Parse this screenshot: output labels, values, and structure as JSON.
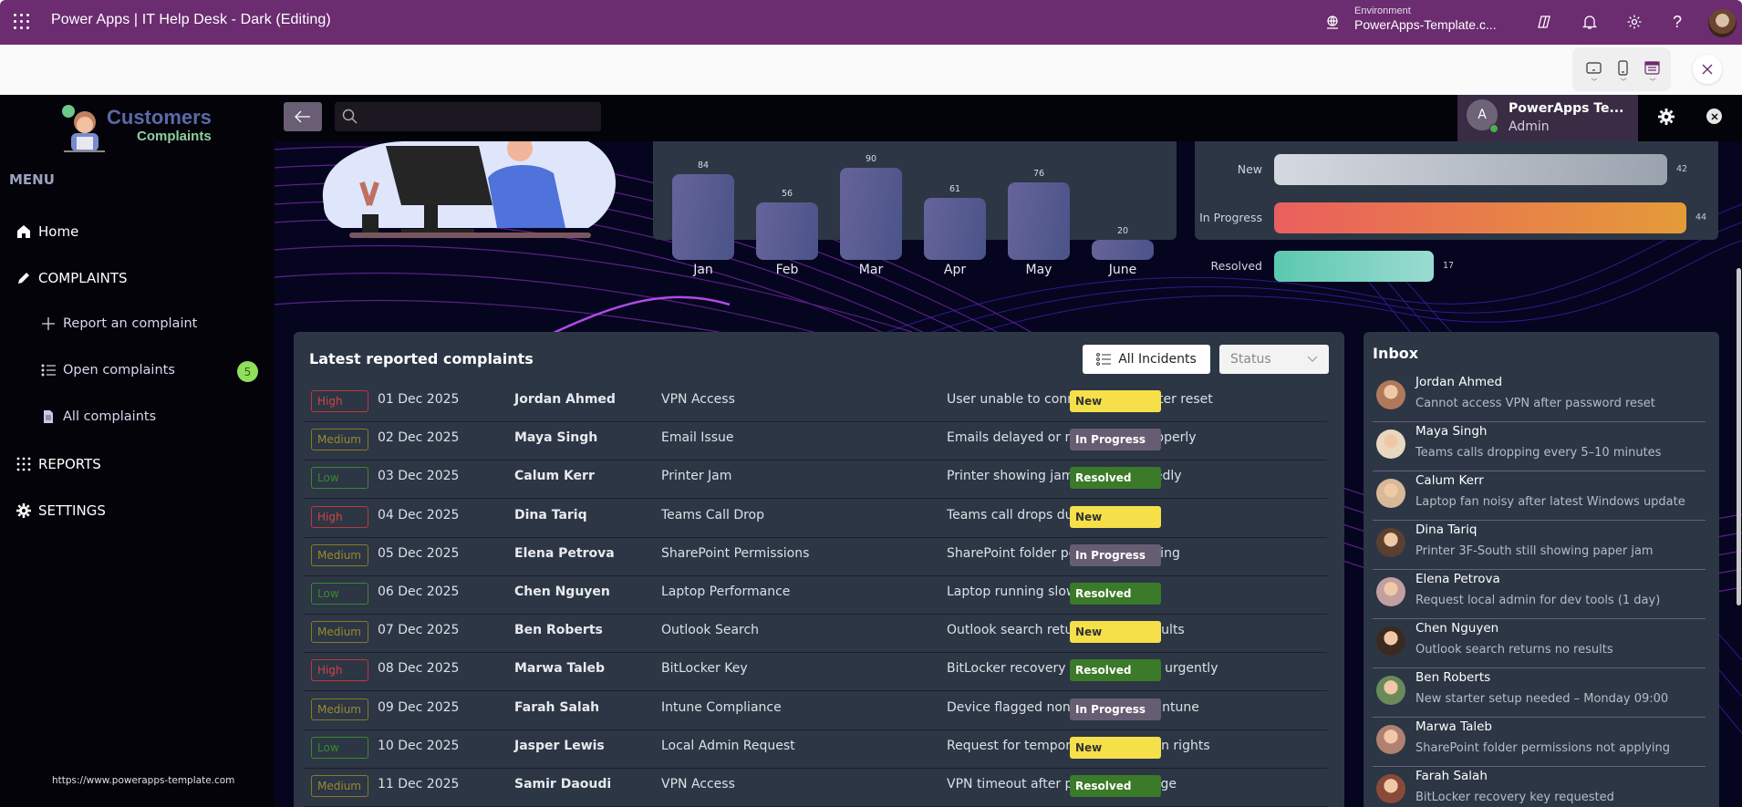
{
  "topbar": {
    "app_title": "Power Apps  |  IT Help Desk - Dark (Editing)",
    "environment_label": "Environment",
    "environment_value": "PowerApps-Template.c...",
    "icons": [
      "waffle-icon",
      "environment-icon",
      "copilot-icon",
      "bell-icon",
      "gear-icon",
      "help-icon",
      "user-avatar"
    ]
  },
  "device_toolbar": {
    "icons": [
      "tablet-icon",
      "phone-icon",
      "web-layout-icon"
    ]
  },
  "sidebar": {
    "logo_title": "Customers",
    "logo_subtitle": "Complaints",
    "menu_label": "MENU",
    "items": [
      {
        "label": "Home",
        "icon": "home-icon"
      },
      {
        "label": "COMPLAINTS",
        "icon": "pencil-icon"
      },
      {
        "label": "Report an complaint",
        "icon": "plus-icon"
      },
      {
        "label": "Open complaints",
        "icon": "list-icon",
        "badge": "5"
      },
      {
        "label": "All complaints",
        "icon": "document-icon"
      },
      {
        "label": "REPORTS",
        "icon": "grid-icon"
      },
      {
        "label": "SETTINGS",
        "icon": "gear-icon"
      }
    ],
    "footer_url": "https://www.powerapps-template.com"
  },
  "header": {
    "search_placeholder": "",
    "profile_initial": "A",
    "profile_name": "PowerApps Te...",
    "profile_role": "Admin"
  },
  "chart_data": [
    {
      "type": "bar",
      "title": "",
      "categories": [
        "Jan",
        "Feb",
        "Mar",
        "Apr",
        "May",
        "June"
      ],
      "values": [
        84,
        56,
        90,
        61,
        76,
        20
      ],
      "xlabel": "",
      "ylabel": "",
      "grid": false,
      "bar_color": "#5a5d94"
    },
    {
      "type": "bar",
      "orientation": "horizontal",
      "title": "",
      "categories": [
        "New",
        "In Progress",
        "Resolved"
      ],
      "values": [
        42,
        44,
        17
      ],
      "colors": [
        "#b8bfc8",
        "#e8794e",
        "#6dd3bf"
      ],
      "grid": false
    }
  ],
  "complaints": {
    "title": "Latest reported complaints",
    "filter_button": "All Incidents",
    "status_select": "Status",
    "rows": [
      {
        "priority": "High",
        "date": "01 Dec 2025",
        "name": "Jordan Ahmed",
        "category": "VPN Access",
        "description": "User unable to connect to VPN after reset",
        "status": "New"
      },
      {
        "priority": "Medium",
        "date": "02 Dec 2025",
        "name": "Maya Singh",
        "category": "Email Issue",
        "description": "Emails delayed or not syncing properly",
        "status": "In Progress"
      },
      {
        "priority": "Low",
        "date": "03 Dec 2025",
        "name": "Calum Kerr",
        "category": "Printer Jam",
        "description": "Printer showing jam error repeatedly",
        "status": "Resolved"
      },
      {
        "priority": "High",
        "date": "04 Dec 2025",
        "name": "Dina Tariq",
        "category": "Teams Call Drop",
        "description": "Teams call drops during meetings",
        "status": "New"
      },
      {
        "priority": "Medium",
        "date": "05 Dec 2025",
        "name": "Elena Petrova",
        "category": "SharePoint Permissions",
        "description": "SharePoint folder permissions failing",
        "status": "In Progress"
      },
      {
        "priority": "Low",
        "date": "06 Dec 2025",
        "name": "Chen Nguyen",
        "category": "Laptop Performance",
        "description": "Laptop running slow after update",
        "status": "Resolved"
      },
      {
        "priority": "Medium",
        "date": "07 Dec 2025",
        "name": "Ben Roberts",
        "category": "Outlook Search",
        "description": "Outlook search returns empty results",
        "status": "New"
      },
      {
        "priority": "High",
        "date": "08 Dec 2025",
        "name": "Marwa Taleb",
        "category": "BitLocker Key",
        "description": "BitLocker recovery key requested urgently",
        "status": "Resolved"
      },
      {
        "priority": "Medium",
        "date": "09 Dec 2025",
        "name": "Farah Salah",
        "category": "Intune Compliance",
        "description": "Device flagged non-compliant in Intune",
        "status": "In Progress"
      },
      {
        "priority": "Low",
        "date": "10 Dec 2025",
        "name": "Jasper Lewis",
        "category": "Local Admin Request",
        "description": "Request for temporary local admin rights",
        "status": "New"
      },
      {
        "priority": "Medium",
        "date": "11 Dec 2025",
        "name": "Samir Daoudi",
        "category": "VPN Access",
        "description": "VPN timeout after password change",
        "status": "Resolved"
      }
    ]
  },
  "inbox": {
    "title": "Inbox",
    "messages": [
      {
        "name": "Jordan Ahmed",
        "text": "Cannot access VPN after password reset"
      },
      {
        "name": "Maya Singh",
        "text": "Teams calls dropping every 5–10 minutes"
      },
      {
        "name": "Calum Kerr",
        "text": "Laptop fan noisy after latest Windows update"
      },
      {
        "name": "Dina Tariq",
        "text": "Printer 3F-South still showing paper jam"
      },
      {
        "name": "Elena Petrova",
        "text": "Request local admin for dev tools (1 day)"
      },
      {
        "name": "Chen Nguyen",
        "text": "Outlook search returns no results"
      },
      {
        "name": "Ben Roberts",
        "text": "New starter setup needed – Monday 09:00"
      },
      {
        "name": "Marwa Taleb",
        "text": "SharePoint folder permissions not applying"
      },
      {
        "name": "Farah Salah",
        "text": "BitLocker recovery key requested"
      }
    ]
  },
  "colors": {
    "topbar": "#6b2c70",
    "card": "#2c3645",
    "status_new": "#f5e04a",
    "status_in_progress": "#675d72",
    "status_resolved": "#3a7a28",
    "priority_high": "#d34444",
    "priority_medium": "#9a8a2a",
    "priority_low": "#3a8a2a"
  }
}
